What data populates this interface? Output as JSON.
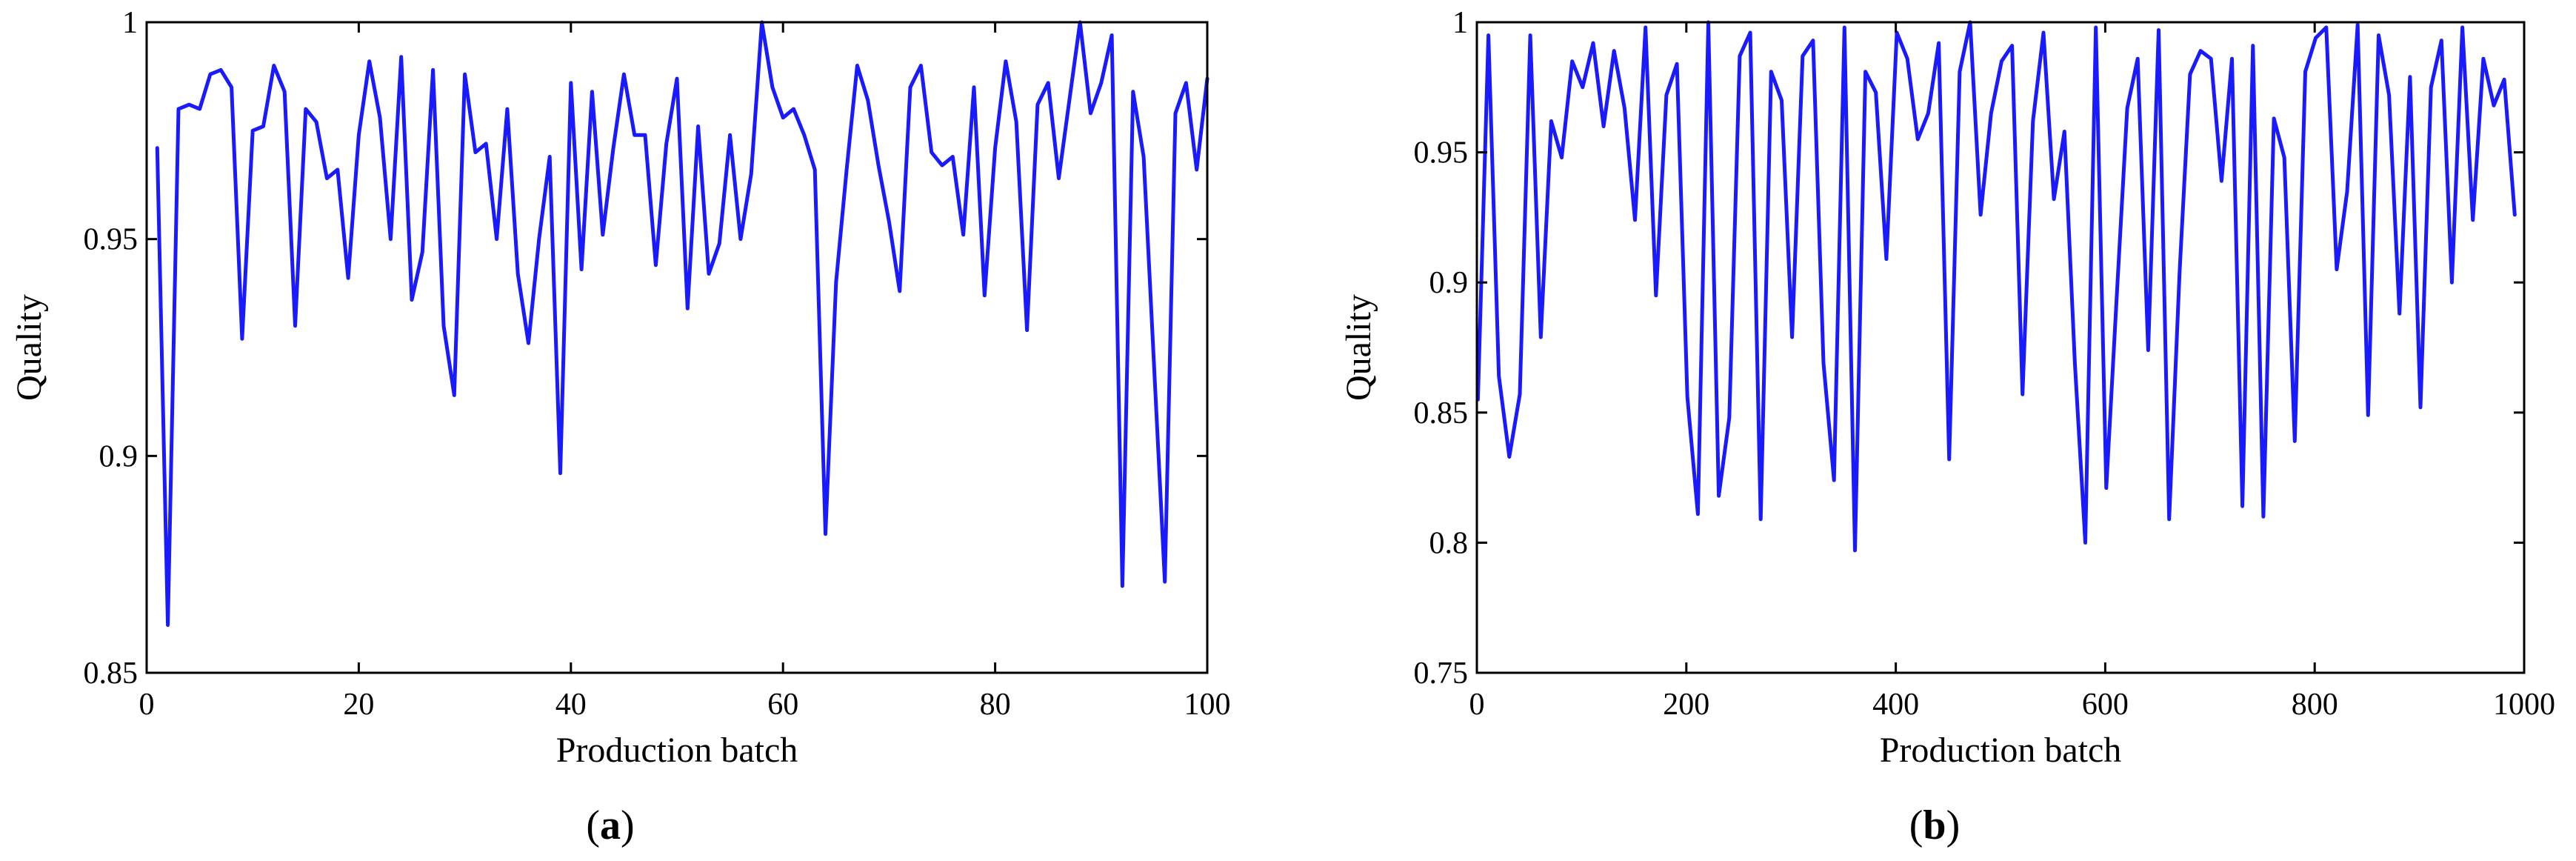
{
  "chart_data": [
    {
      "type": "line",
      "panel_label": "a",
      "xlabel": "Production batch",
      "ylabel": "Quality",
      "xlim": [
        0,
        100
      ],
      "ylim": [
        0.85,
        1.0
      ],
      "xticks": [
        0,
        20,
        40,
        60,
        80,
        100
      ],
      "yticks": [
        0.85,
        0.9,
        0.95,
        1.0
      ],
      "xtick_labels": [
        "0",
        "20",
        "40",
        "60",
        "80",
        "100"
      ],
      "ytick_labels": [
        "0.85",
        "0.9",
        "0.95",
        "1"
      ],
      "grid": false,
      "series_color": "#1a1aff",
      "series": [
        {
          "x": [
            1,
            2,
            3,
            4,
            5,
            6,
            7,
            8,
            9,
            10,
            11,
            12,
            13,
            14,
            15,
            16,
            17,
            18,
            19,
            20,
            21,
            22,
            23,
            24,
            25,
            26,
            27,
            28,
            29,
            30,
            31,
            32,
            33,
            34,
            35,
            36,
            37,
            38,
            39,
            40,
            41,
            42,
            43,
            44,
            45,
            46,
            47,
            48,
            49,
            50,
            51,
            52,
            53,
            54,
            55,
            56,
            57,
            58,
            59,
            60,
            61,
            62,
            63,
            64,
            65,
            66,
            67,
            68,
            69,
            70,
            71,
            72,
            73,
            74,
            75,
            76,
            77,
            78,
            79,
            80,
            81,
            82,
            83,
            84,
            85,
            86,
            87,
            88,
            89,
            90,
            91,
            92,
            93,
            94,
            95,
            96,
            97,
            98,
            99,
            100
          ],
          "values": [
            0.971,
            0.861,
            0.98,
            0.981,
            0.98,
            0.988,
            0.989,
            0.985,
            0.927,
            0.975,
            0.976,
            0.99,
            0.984,
            0.93,
            0.98,
            0.977,
            0.964,
            0.966,
            0.941,
            0.974,
            0.991,
            0.978,
            0.95,
            0.992,
            0.936,
            0.947,
            0.989,
            0.93,
            0.914,
            0.988,
            0.97,
            0.972,
            0.95,
            0.98,
            0.942,
            0.926,
            0.95,
            0.969,
            0.896,
            0.986,
            0.943,
            0.984,
            0.951,
            0.971,
            0.988,
            0.974,
            0.974,
            0.944,
            0.972,
            0.987,
            0.934,
            0.976,
            0.942,
            0.949,
            0.974,
            0.95,
            0.965,
            1.0,
            0.985,
            0.978,
            0.98,
            0.974,
            0.966,
            0.882,
            0.94,
            0.966,
            0.99,
            0.982,
            0.967,
            0.954,
            0.938,
            0.985,
            0.99,
            0.97,
            0.967,
            0.969,
            0.951,
            0.985,
            0.937,
            0.971,
            0.991,
            0.977,
            0.929,
            0.981,
            0.986,
            0.964,
            0.982,
            1.0,
            0.979,
            0.986,
            0.997,
            0.87,
            0.984,
            0.969,
            0.92,
            0.871,
            0.979,
            0.986,
            0.966,
            0.987
          ]
        }
      ]
    },
    {
      "type": "line",
      "panel_label": "b",
      "xlabel": "Production batch",
      "ylabel": "Quality",
      "xlim": [
        0,
        1000
      ],
      "ylim": [
        0.75,
        1.0
      ],
      "xticks": [
        0,
        200,
        400,
        600,
        800,
        1000
      ],
      "yticks": [
        0.75,
        0.8,
        0.85,
        0.9,
        0.95,
        1.0
      ],
      "xtick_labels": [
        "0",
        "200",
        "400",
        "600",
        "800",
        "1000"
      ],
      "ytick_labels": [
        "0.75",
        "0.8",
        "0.85",
        "0.9",
        "0.95",
        "1"
      ],
      "grid": false,
      "series_color": "#1a1aff",
      "series": [
        {
          "x_start": 1,
          "x_step": 10,
          "values": [
            0.855,
            0.995,
            0.864,
            0.833,
            0.857,
            0.995,
            0.879,
            0.962,
            0.948,
            0.985,
            0.975,
            0.992,
            0.96,
            0.989,
            0.967,
            0.924,
            0.998,
            0.895,
            0.972,
            0.984,
            0.856,
            0.811,
            1.0,
            0.818,
            0.848,
            0.987,
            0.996,
            0.809,
            0.981,
            0.97,
            0.879,
            0.987,
            0.993,
            0.869,
            0.824,
            0.998,
            0.797,
            0.981,
            0.973,
            0.909,
            0.996,
            0.986,
            0.955,
            0.965,
            0.992,
            0.832,
            0.981,
            1.0,
            0.926,
            0.965,
            0.985,
            0.991,
            0.857,
            0.962,
            0.996,
            0.932,
            0.958,
            0.869,
            0.8,
            0.998,
            0.821,
            0.895,
            0.967,
            0.986,
            0.874,
            0.997,
            0.809,
            0.904,
            0.98,
            0.989,
            0.986,
            0.939,
            0.986,
            0.814,
            0.991,
            0.81,
            0.963,
            0.948,
            0.839,
            0.981,
            0.994,
            0.998,
            0.905,
            0.935,
            0.999,
            0.849,
            0.995,
            0.972,
            0.888,
            0.979,
            0.852,
            0.975,
            0.993,
            0.9,
            0.998,
            0.924,
            0.986,
            0.968,
            0.978,
            0.926
          ]
        }
      ]
    }
  ]
}
